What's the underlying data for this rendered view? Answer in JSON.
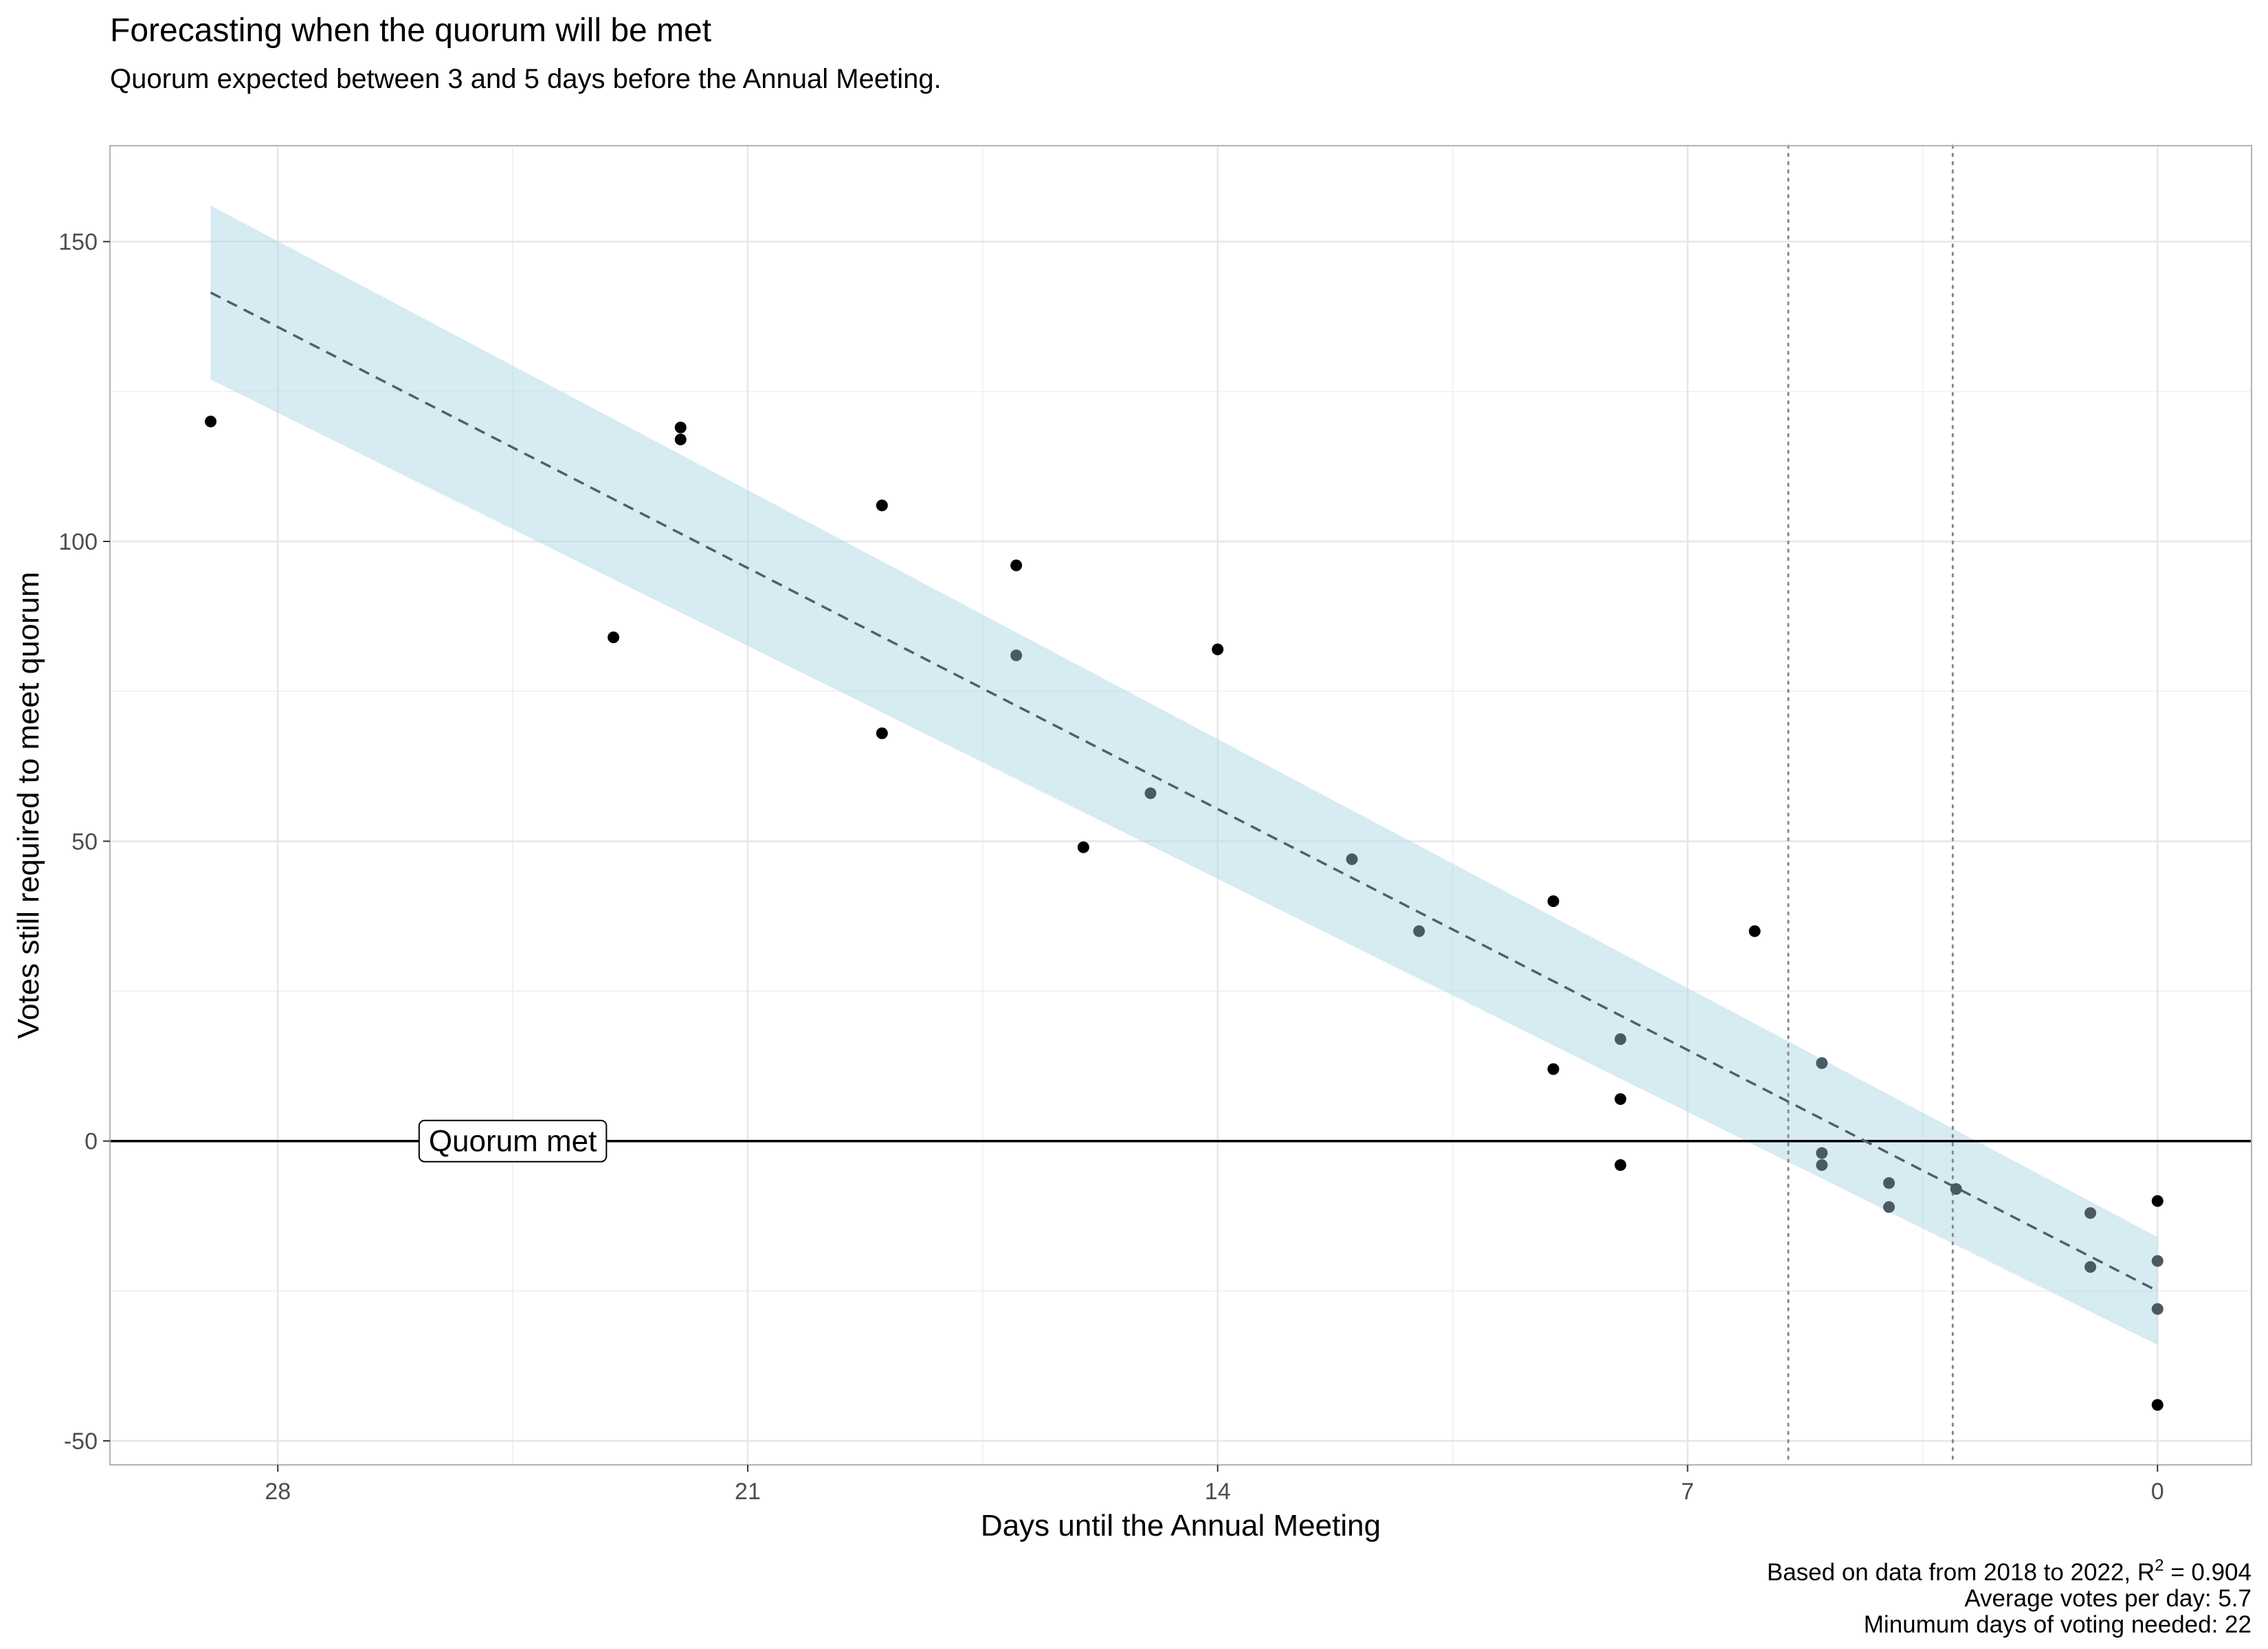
{
  "chart_data": {
    "type": "scatter",
    "title": "Forecasting when the quorum will be met",
    "subtitle": "Quorum expected between 3 and 5 days before the Annual Meeting.",
    "xlabel": "Days until the Annual Meeting",
    "ylabel": "Votes still required to meet quorum",
    "x_reversed": true,
    "xlim": [
      30.5,
      -1.4
    ],
    "ylim": [
      -54,
      166
    ],
    "x_ticks": [
      {
        "value": 28,
        "label": "28"
      },
      {
        "value": 21,
        "label": "21"
      },
      {
        "value": 14,
        "label": "14"
      },
      {
        "value": 7,
        "label": "7"
      },
      {
        "value": 0,
        "label": "0"
      }
    ],
    "x_minor_ticks": [
      24.5,
      17.5,
      10.5,
      3.5
    ],
    "y_ticks": [
      {
        "value": 150,
        "label": "150"
      },
      {
        "value": 100,
        "label": "100"
      },
      {
        "value": 50,
        "label": "50"
      },
      {
        "value": 0,
        "label": "0"
      },
      {
        "value": -50,
        "label": "-50"
      }
    ],
    "y_minor_ticks": [
      125,
      75,
      25,
      -25
    ],
    "grid": true,
    "points": [
      {
        "x": 29,
        "y": 120
      },
      {
        "x": 23,
        "y": 84
      },
      {
        "x": 22,
        "y": 119
      },
      {
        "x": 22,
        "y": 117
      },
      {
        "x": 19,
        "y": 106
      },
      {
        "x": 19,
        "y": 68
      },
      {
        "x": 17,
        "y": 96
      },
      {
        "x": 17,
        "y": 81
      },
      {
        "x": 16,
        "y": 49
      },
      {
        "x": 15,
        "y": 58
      },
      {
        "x": 14,
        "y": 82
      },
      {
        "x": 12,
        "y": 47
      },
      {
        "x": 11,
        "y": 35
      },
      {
        "x": 9,
        "y": 40
      },
      {
        "x": 9,
        "y": 12
      },
      {
        "x": 8,
        "y": 17
      },
      {
        "x": 8,
        "y": 7
      },
      {
        "x": 8,
        "y": -4
      },
      {
        "x": 6,
        "y": 35
      },
      {
        "x": 5,
        "y": 13
      },
      {
        "x": 5,
        "y": -2
      },
      {
        "x": 5,
        "y": -4
      },
      {
        "x": 4,
        "y": -7
      },
      {
        "x": 4,
        "y": -11
      },
      {
        "x": 3,
        "y": -8
      },
      {
        "x": 1,
        "y": -12
      },
      {
        "x": 1,
        "y": -21
      },
      {
        "x": 0,
        "y": -10
      },
      {
        "x": 0,
        "y": -20
      },
      {
        "x": 0,
        "y": -28
      },
      {
        "x": 0,
        "y": -44
      }
    ],
    "fit_line": {
      "x": [
        29,
        0
      ],
      "y": [
        141.5,
        -25
      ],
      "style": "dashed",
      "color": "#555e66"
    },
    "confidence_band": {
      "x": [
        29,
        0
      ],
      "upper": [
        156,
        -16
      ],
      "lower": [
        127,
        -34
      ],
      "color": "#add8e6"
    },
    "vlines": [
      {
        "x": 5.5,
        "style": "dotted"
      },
      {
        "x": 3.05,
        "style": "dotted"
      }
    ],
    "hline": {
      "y": 0,
      "label": "Quorum met",
      "label_x": 24.5
    },
    "caption": {
      "line1_prefix": "Based on data from 2018 to 2022, R",
      "line1_sup": "2",
      "line1_suffix": " = 0.904",
      "line2": "Average votes per day: 5.7",
      "line3": "Minumum days of voting needed: 22"
    },
    "colors": {
      "point": "#000000",
      "point_in_band": "#4a5a63",
      "band": "#add8e6",
      "band_opacity": 0.5,
      "grid_major": "#e6e6e6",
      "grid_minor": "#f2f2f2",
      "panel_border": "#b3b3b3"
    }
  }
}
